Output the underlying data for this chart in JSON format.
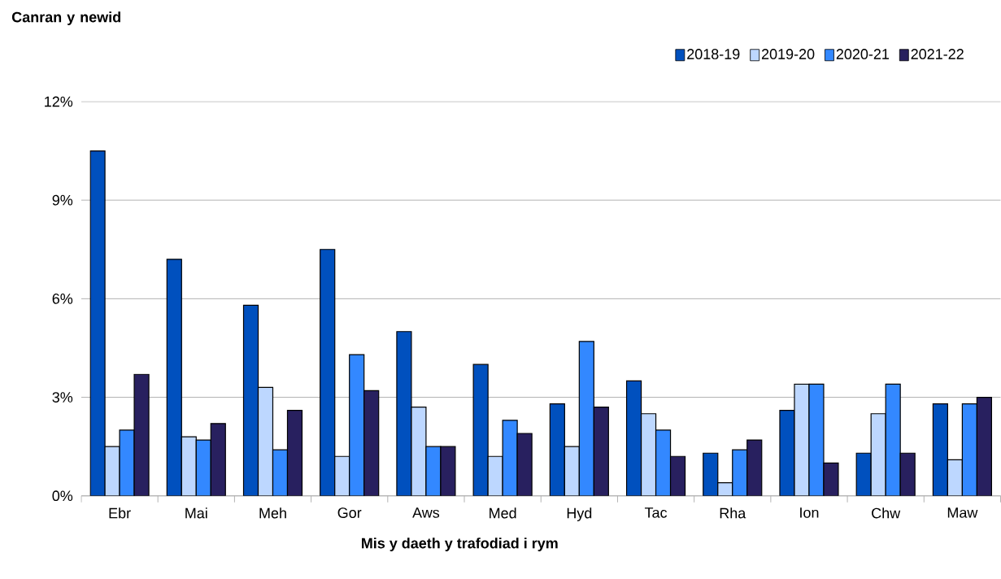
{
  "chart_data": {
    "type": "bar",
    "xlabel": "Mis y daeth y trafodiad i rym",
    "ylabel": "Canran y newid",
    "categories": [
      "Ebr",
      "Mai",
      "Meh",
      "Gor",
      "Aws",
      "Med",
      "Hyd",
      "Tac",
      "Rha",
      "Ion",
      "Chw",
      "Maw"
    ],
    "series": [
      {
        "name": "2018-19",
        "color": "#0050be",
        "values": [
          10.5,
          7.2,
          5.8,
          7.5,
          5.0,
          4.0,
          2.8,
          3.5,
          1.3,
          2.6,
          1.3,
          2.8
        ]
      },
      {
        "name": "2019-20",
        "color": "#bdd7ff",
        "values": [
          1.5,
          1.8,
          3.3,
          1.2,
          2.7,
          1.2,
          1.5,
          2.5,
          0.4,
          3.4,
          2.5,
          1.1
        ]
      },
      {
        "name": "2020-21",
        "color": "#3388ff",
        "values": [
          2.0,
          1.7,
          1.4,
          4.3,
          1.5,
          2.3,
          4.7,
          2.0,
          1.4,
          3.4,
          3.4,
          2.8
        ]
      },
      {
        "name": "2021-22",
        "color": "#28205f",
        "values": [
          3.7,
          2.2,
          2.6,
          3.2,
          1.5,
          1.9,
          2.7,
          1.2,
          1.7,
          1.0,
          1.3,
          3.0
        ]
      }
    ],
    "ylim": [
      0,
      12
    ],
    "yticks": [
      {
        "value": 0,
        "label": "0%"
      },
      {
        "value": 3,
        "label": "3%"
      },
      {
        "value": 6,
        "label": "6%"
      },
      {
        "value": 9,
        "label": "9%"
      },
      {
        "value": 12,
        "label": "12%"
      }
    ],
    "grid": "y",
    "legend": "top right"
  }
}
